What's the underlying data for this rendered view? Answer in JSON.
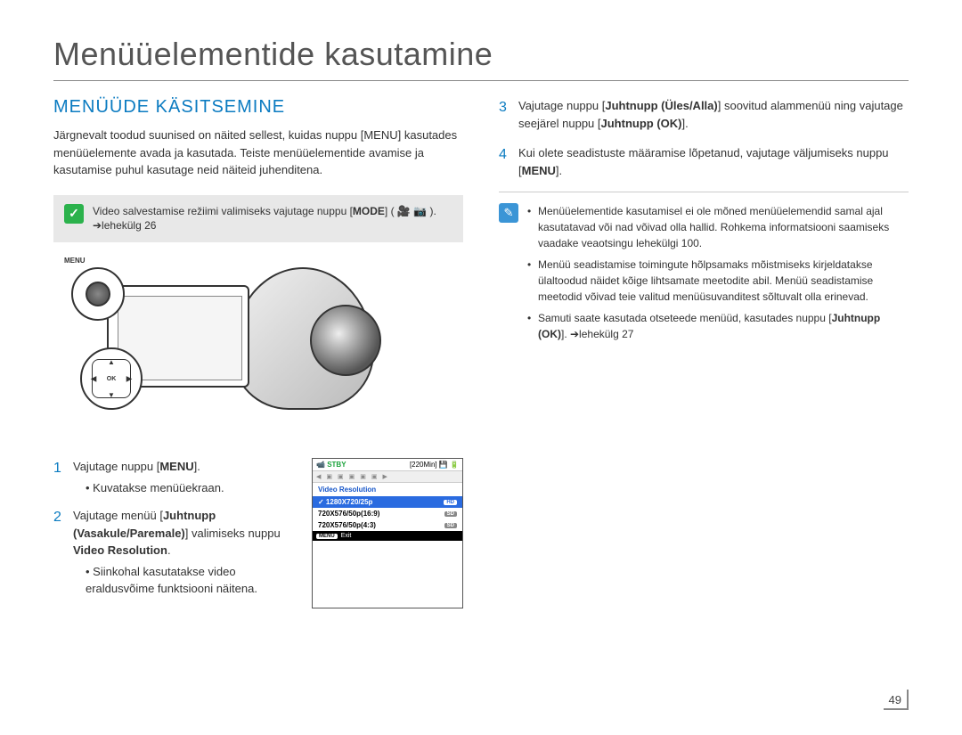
{
  "chapter_title": "Menüüelementide kasutamine",
  "section_heading": "MENÜÜDE KÄSITSEMINE",
  "intro_paragraph": "Järgnevalt toodud suunised on näited sellest, kuidas nuppu [MENU] kasutades menüüelemente avada ja kasutada. Teiste menüüelementide avamise ja kasutamise puhul kasutage neid näiteid juhenditena.",
  "mode_note": {
    "text_before": "Video salvestamise režiimi valimiseks vajutage nuppu [",
    "bold_mode": "MODE",
    "text_after": "] ( 🎥 📷 ). ➔lehekülg 26"
  },
  "illustration": {
    "menu_label": "MENU",
    "ok_label": "OK"
  },
  "steps_left": {
    "s1": {
      "num": "1",
      "line": "Vajutage nuppu [",
      "bold": "MENU",
      "line2": "].",
      "bullet": "Kuvatakse menüüekraan."
    },
    "s2": {
      "num": "2",
      "line1": "Vajutage menüü [",
      "bold1": "Juhtnupp (Vasakule/Paremale)",
      "line2": "] valimiseks nuppu ",
      "bold2": "Video Resolution",
      "line3": ".",
      "bullet": "Siinkohal kasutatakse video eraldusvõime funktsiooni näitena."
    }
  },
  "lcd": {
    "stby": "STBY",
    "time": "[220Min]",
    "heading": "Video Resolution",
    "rows": [
      {
        "label": "1280X720/25p",
        "chip": "HD",
        "selected": true
      },
      {
        "label": "720X576/50p(16:9)",
        "chip": "SD",
        "selected": false
      },
      {
        "label": "720X576/50p(4:3)",
        "chip": "SD",
        "selected": false
      }
    ],
    "footer_menu": "MENU",
    "footer_exit": "Exit"
  },
  "steps_right": {
    "s3": {
      "num": "3",
      "pre": "Vajutage nuppu [",
      "bold1": "Juhtnupp (Üles/Alla)",
      "mid": "] soovitud alammenüü ning vajutage seejärel nuppu  [",
      "bold2": "Juhtnupp (OK)",
      "post": "]."
    },
    "s4": {
      "num": "4",
      "pre": "Kui olete seadistuste määramise lõpetanud, vajutage väljumiseks nuppu [",
      "bold": "MENU",
      "post": "]."
    }
  },
  "notes": {
    "n1": "Menüüelementide kasutamisel ei ole mõned menüüelemendid samal ajal kasutatavad või nad võivad olla hallid. Rohkema informatsiooni saamiseks vaadake veaotsingu lehekülgi 100.",
    "n2": "Menüü seadistamise toimingute hõlpsamaks mõistmiseks kirjeldatakse ülaltoodud näidet kõige lihtsamate meetodite abil. Menüü seadistamise meetodid võivad teie valitud menüüsuvanditest sõltuvalt olla erinevad.",
    "n3_pre": "Samuti saate kasutada otseteede menüüd, kasutades nuppu [",
    "n3_bold": "Juhtnupp (OK)",
    "n3_post": "]. ➔lehekülg 27"
  },
  "page_number": "49"
}
